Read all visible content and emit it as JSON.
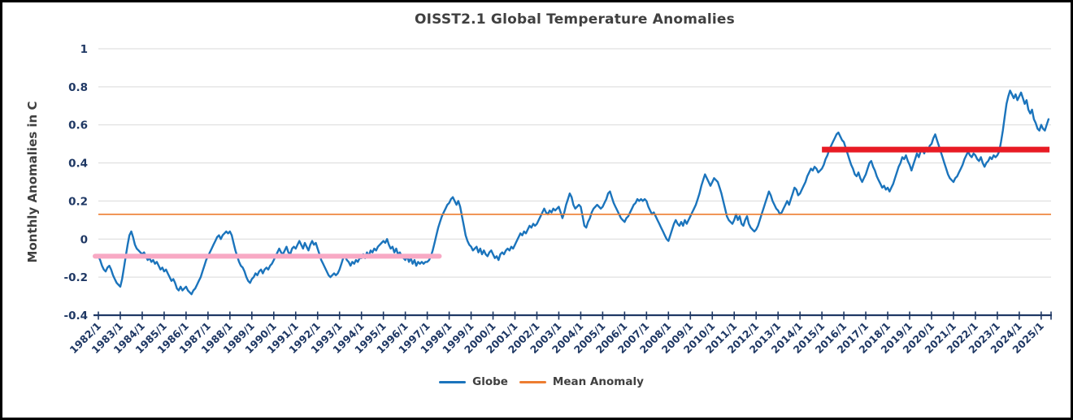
{
  "title": "OISST2.1 Global Temperature Anomalies",
  "y_axis": {
    "title": "Monthly Anomalies in C",
    "ticks": [
      "1",
      "0.8",
      "0.6",
      "0.4",
      "0.2",
      "0",
      "-0.2",
      "-0.4"
    ]
  },
  "x_axis": {
    "tick_labels": [
      "1982/1",
      "1983/1",
      "1984/1",
      "1985/1",
      "1986/1",
      "1987/1",
      "1988/1",
      "1989/1",
      "1990/1",
      "1991/1",
      "1992/1",
      "1993/1",
      "1994/1",
      "1995/1",
      "1996/1",
      "1997/1",
      "1998/1",
      "1999/1",
      "2000/1",
      "2001/1",
      "2002/1",
      "2003/1",
      "2004/1",
      "2005/1",
      "2006/1",
      "2007/1",
      "2008/1",
      "2009/1",
      "2010/1",
      "2011/1",
      "2012/1",
      "2013/1",
      "2014/1",
      "2015/1",
      "2016/1",
      "2017/1",
      "2018/1",
      "2019/1",
      "2020/1",
      "2021/1",
      "2022/1",
      "2023/1",
      "2024/1",
      "2025/1"
    ]
  },
  "legend": [
    {
      "label": "Globe",
      "color": "#1B74BC"
    },
    {
      "label": "Mean Anomaly",
      "color": "#ED7D31"
    }
  ],
  "colors": {
    "globe_line": "#1B74BC",
    "mean_anomaly_line": "#ED7D31",
    "early_average_line": "#F8A9C4",
    "recent_average_line": "#E81B24",
    "axis": "#1F3864",
    "gridline": "#D9D9D9",
    "title_text": "#404040",
    "tick_text": "#1F3864",
    "frame_border": "#000000"
  },
  "chart_data": {
    "type": "line",
    "title": "OISST2.1 Global Temperature Anomalies",
    "xlabel": "",
    "ylabel": "Monthly Anomalies in C",
    "ylim": [
      -0.4,
      1
    ],
    "xlim": [
      1982,
      2025.45
    ],
    "grid": true,
    "legend_position": "bottom-center",
    "gridlines": [
      1,
      0.8,
      0.6,
      0.4,
      0.2,
      0,
      -0.2,
      -0.4
    ],
    "x_start_year": 1982,
    "x_step_months": 1,
    "mean_anomaly": 0.13,
    "series": [
      {
        "name": "Globe",
        "color": "#1B74BC",
        "monthly_values": [
          -0.09,
          -0.11,
          -0.14,
          -0.16,
          -0.17,
          -0.15,
          -0.14,
          -0.16,
          -0.19,
          -0.21,
          -0.23,
          -0.24,
          -0.25,
          -0.21,
          -0.15,
          -0.09,
          -0.03,
          0.02,
          0.04,
          0.01,
          -0.03,
          -0.05,
          -0.06,
          -0.07,
          -0.08,
          -0.07,
          -0.09,
          -0.11,
          -0.1,
          -0.12,
          -0.11,
          -0.13,
          -0.12,
          -0.14,
          -0.16,
          -0.15,
          -0.17,
          -0.16,
          -0.18,
          -0.2,
          -0.22,
          -0.21,
          -0.23,
          -0.26,
          -0.27,
          -0.25,
          -0.27,
          -0.26,
          -0.25,
          -0.27,
          -0.28,
          -0.29,
          -0.27,
          -0.26,
          -0.24,
          -0.22,
          -0.2,
          -0.17,
          -0.14,
          -0.11,
          -0.09,
          -0.07,
          -0.05,
          -0.03,
          -0.01,
          0.01,
          0.02,
          0.0,
          0.02,
          0.03,
          0.04,
          0.03,
          0.04,
          0.02,
          -0.02,
          -0.06,
          -0.09,
          -0.12,
          -0.14,
          -0.15,
          -0.17,
          -0.2,
          -0.22,
          -0.23,
          -0.21,
          -0.2,
          -0.18,
          -0.19,
          -0.17,
          -0.16,
          -0.18,
          -0.16,
          -0.15,
          -0.16,
          -0.14,
          -0.13,
          -0.11,
          -0.09,
          -0.07,
          -0.05,
          -0.07,
          -0.08,
          -0.06,
          -0.04,
          -0.07,
          -0.08,
          -0.05,
          -0.04,
          -0.05,
          -0.03,
          -0.01,
          -0.03,
          -0.05,
          -0.02,
          -0.04,
          -0.06,
          -0.03,
          -0.01,
          -0.03,
          -0.02,
          -0.05,
          -0.08,
          -0.11,
          -0.13,
          -0.15,
          -0.17,
          -0.19,
          -0.2,
          -0.19,
          -0.18,
          -0.19,
          -0.18,
          -0.16,
          -0.13,
          -0.1,
          -0.09,
          -0.11,
          -0.12,
          -0.14,
          -0.12,
          -0.13,
          -0.11,
          -0.12,
          -0.1,
          -0.1,
          -0.08,
          -0.1,
          -0.07,
          -0.09,
          -0.06,
          -0.07,
          -0.05,
          -0.06,
          -0.04,
          -0.03,
          -0.02,
          -0.01,
          -0.02,
          0.0,
          -0.03,
          -0.05,
          -0.04,
          -0.07,
          -0.05,
          -0.08,
          -0.07,
          -0.09,
          -0.1,
          -0.11,
          -0.09,
          -0.12,
          -0.1,
          -0.13,
          -0.11,
          -0.14,
          -0.12,
          -0.13,
          -0.12,
          -0.13,
          -0.12,
          -0.12,
          -0.11,
          -0.09,
          -0.06,
          -0.02,
          0.02,
          0.06,
          0.09,
          0.12,
          0.14,
          0.16,
          0.18,
          0.19,
          0.21,
          0.22,
          0.2,
          0.18,
          0.2,
          0.17,
          0.12,
          0.07,
          0.02,
          -0.01,
          -0.03,
          -0.04,
          -0.06,
          -0.05,
          -0.04,
          -0.07,
          -0.05,
          -0.08,
          -0.06,
          -0.08,
          -0.09,
          -0.07,
          -0.06,
          -0.08,
          -0.1,
          -0.09,
          -0.11,
          -0.08,
          -0.07,
          -0.08,
          -0.06,
          -0.05,
          -0.06,
          -0.04,
          -0.05,
          -0.03,
          -0.01,
          0.01,
          0.03,
          0.02,
          0.04,
          0.03,
          0.05,
          0.07,
          0.06,
          0.08,
          0.07,
          0.08,
          0.1,
          0.12,
          0.14,
          0.16,
          0.14,
          0.13,
          0.15,
          0.14,
          0.16,
          0.15,
          0.16,
          0.17,
          0.14,
          0.11,
          0.14,
          0.18,
          0.21,
          0.24,
          0.22,
          0.18,
          0.16,
          0.17,
          0.18,
          0.17,
          0.12,
          0.07,
          0.06,
          0.09,
          0.11,
          0.14,
          0.16,
          0.17,
          0.18,
          0.17,
          0.16,
          0.17,
          0.19,
          0.21,
          0.24,
          0.25,
          0.22,
          0.19,
          0.17,
          0.15,
          0.13,
          0.11,
          0.1,
          0.09,
          0.11,
          0.12,
          0.14,
          0.16,
          0.18,
          0.19,
          0.21,
          0.2,
          0.21,
          0.2,
          0.21,
          0.2,
          0.17,
          0.15,
          0.13,
          0.14,
          0.12,
          0.1,
          0.08,
          0.06,
          0.04,
          0.02,
          0.0,
          -0.01,
          0.02,
          0.05,
          0.08,
          0.1,
          0.08,
          0.07,
          0.09,
          0.07,
          0.1,
          0.08,
          0.1,
          0.12,
          0.14,
          0.16,
          0.18,
          0.21,
          0.24,
          0.28,
          0.31,
          0.34,
          0.32,
          0.3,
          0.28,
          0.3,
          0.32,
          0.31,
          0.3,
          0.27,
          0.24,
          0.2,
          0.16,
          0.12,
          0.1,
          0.09,
          0.08,
          0.1,
          0.13,
          0.1,
          0.12,
          0.08,
          0.07,
          0.1,
          0.12,
          0.08,
          0.06,
          0.05,
          0.04,
          0.05,
          0.07,
          0.1,
          0.13,
          0.16,
          0.19,
          0.22,
          0.25,
          0.23,
          0.2,
          0.18,
          0.16,
          0.15,
          0.13,
          0.14,
          0.16,
          0.18,
          0.2,
          0.18,
          0.21,
          0.24,
          0.27,
          0.26,
          0.23,
          0.24,
          0.26,
          0.28,
          0.3,
          0.33,
          0.35,
          0.37,
          0.36,
          0.38,
          0.37,
          0.35,
          0.36,
          0.37,
          0.39,
          0.42,
          0.44,
          0.47,
          0.49,
          0.51,
          0.53,
          0.55,
          0.56,
          0.54,
          0.52,
          0.51,
          0.48,
          0.45,
          0.42,
          0.39,
          0.37,
          0.34,
          0.33,
          0.35,
          0.32,
          0.3,
          0.32,
          0.34,
          0.37,
          0.4,
          0.41,
          0.38,
          0.36,
          0.33,
          0.31,
          0.29,
          0.27,
          0.28,
          0.26,
          0.27,
          0.25,
          0.27,
          0.29,
          0.32,
          0.35,
          0.38,
          0.4,
          0.43,
          0.42,
          0.44,
          0.41,
          0.39,
          0.36,
          0.39,
          0.42,
          0.45,
          0.43,
          0.46,
          0.47,
          0.45,
          0.48,
          0.46,
          0.49,
          0.5,
          0.53,
          0.55,
          0.52,
          0.49,
          0.46,
          0.43,
          0.4,
          0.37,
          0.34,
          0.32,
          0.31,
          0.3,
          0.32,
          0.33,
          0.35,
          0.37,
          0.39,
          0.42,
          0.44,
          0.46,
          0.44,
          0.43,
          0.45,
          0.44,
          0.42,
          0.41,
          0.43,
          0.4,
          0.38,
          0.4,
          0.41,
          0.43,
          0.42,
          0.44,
          0.43,
          0.44,
          0.46,
          0.51,
          0.57,
          0.64,
          0.71,
          0.75,
          0.78,
          0.76,
          0.74,
          0.76,
          0.73,
          0.75,
          0.77,
          0.74,
          0.71,
          0.73,
          0.68,
          0.66,
          0.68,
          0.63,
          0.61,
          0.58,
          0.57,
          0.6,
          0.58,
          0.57,
          0.6,
          0.63
        ]
      },
      {
        "name": "Mean Anomaly",
        "color": "#ED7D31",
        "value": 0.13
      }
    ],
    "annotations": [
      {
        "name": "early-period-average",
        "color": "#F8A9C4",
        "y": -0.09,
        "x_from": 1982.0,
        "x_to": 1997.55
      },
      {
        "name": "recent-period-average",
        "color": "#E81B24",
        "y": 0.47,
        "x_from": 2015.0,
        "x_to": 2025.38
      }
    ]
  }
}
